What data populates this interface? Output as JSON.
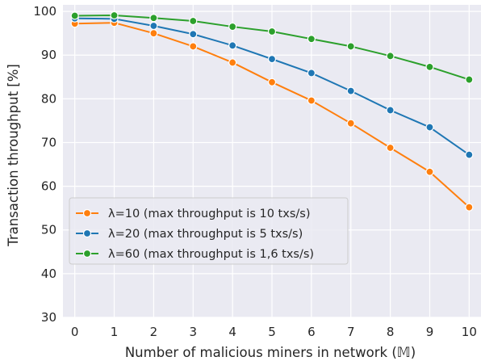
{
  "chart_data": {
    "type": "line",
    "xlabel": "Number of malicious miners in network (𝕄)",
    "ylabel": "Transaction throughput [%]",
    "xlim": [
      -0.3,
      10.3
    ],
    "ylim": [
      30,
      101.5
    ],
    "xticks": [
      "0",
      "1",
      "2",
      "3",
      "4",
      "5",
      "6",
      "7",
      "8",
      "9",
      "10"
    ],
    "yticks": [
      "30",
      "40",
      "50",
      "60",
      "70",
      "80",
      "90",
      "100"
    ],
    "grid": true,
    "legend_position": "lower-left",
    "x": [
      0,
      1,
      2,
      3,
      4,
      5,
      6,
      7,
      8,
      9,
      10
    ],
    "series": [
      {
        "name": "λ=10 (max throughput is 10 txs/s)",
        "color": "#ff7f0e",
        "values": [
          97.2,
          97.4,
          95.0,
          92.0,
          88.3,
          83.8,
          79.6,
          74.4,
          68.8,
          63.3,
          55.2
        ]
      },
      {
        "name": "λ=20 (max throughput is 5 txs/s)",
        "color": "#1f77b4",
        "values": [
          98.4,
          98.3,
          96.7,
          94.8,
          92.2,
          89.1,
          85.9,
          81.8,
          77.4,
          73.5,
          67.2
        ]
      },
      {
        "name": "λ=60 (max throughput is 1,6 txs/s)",
        "color": "#2ca02c",
        "values": [
          99.0,
          99.1,
          98.5,
          97.8,
          96.5,
          95.4,
          93.7,
          92.0,
          89.8,
          87.3,
          84.4
        ]
      }
    ]
  }
}
